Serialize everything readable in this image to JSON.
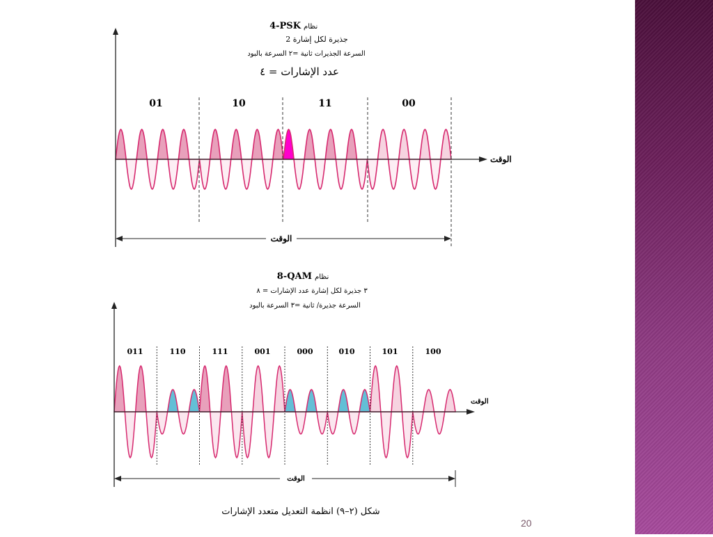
{
  "slide": {
    "page_number": "20"
  },
  "fig1": {
    "title_name": "نظام",
    "title_code": "4-PSK",
    "line1": "2 جذيرة لكل إشارة",
    "line2": "السرعة الجذيرات ثانية =٢ السرعة بالبود",
    "line3": "عدد الإشارات = ٤",
    "symbols": [
      "01",
      "10",
      "11",
      "00"
    ],
    "time_label_axis": "الوقت",
    "time_label_span": "الوقت"
  },
  "fig2": {
    "title_name": "نظام",
    "title_code": "8-QAM",
    "line1": "٣ جذيرة لكل إشارة عدد الإشارات = ٨",
    "line2": "السرعة جذيرة/ ثانية =٣ السرعة بالبود",
    "symbols": [
      "011",
      "110",
      "111",
      "001",
      "000",
      "010",
      "101",
      "100"
    ],
    "time_label_axis": "الوقت",
    "time_label_span": "الوقت"
  },
  "caption": "شكل (٢–٩) انظمة التعديل متعدد الإشارات",
  "colors": {
    "pink_line": "#d6286e",
    "pink_fill": "#e8a0bb",
    "pink_light": "#f6d3e0",
    "teal_fill": "#63bfd6",
    "magenta": "#ff00cc",
    "symbol_text": "#c0306a"
  }
}
